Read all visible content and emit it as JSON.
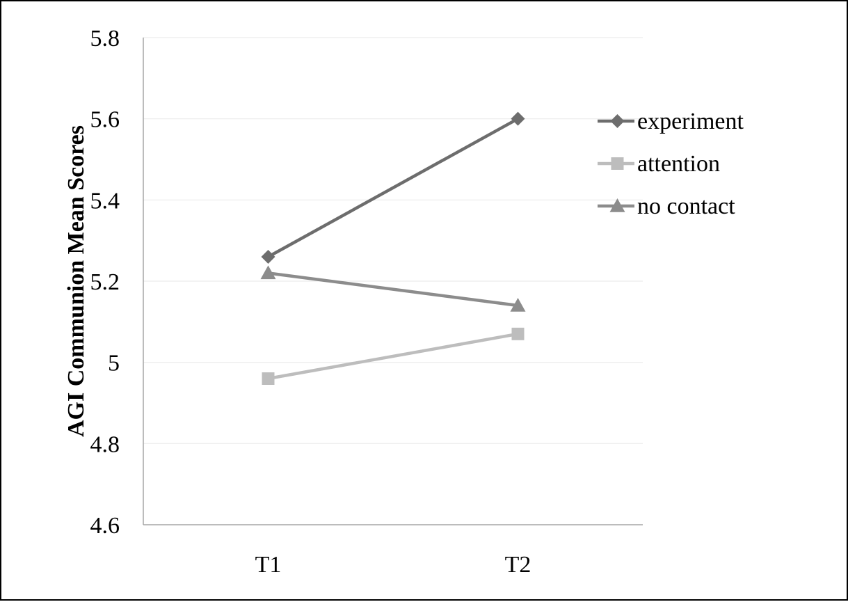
{
  "chart_data": {
    "type": "line",
    "title": "",
    "xlabel": "",
    "ylabel": "AGI Communion Mean Scores",
    "categories": [
      "T1",
      "T2"
    ],
    "ylim": [
      4.6,
      5.8
    ],
    "yticks": [
      "4.6",
      "4.8",
      "5",
      "5.2",
      "5.4",
      "5.6",
      "5.8"
    ],
    "grid": true,
    "legend_position": "right",
    "series": [
      {
        "name": "experiment",
        "values": [
          5.26,
          5.6
        ],
        "color": "#6d6d6d",
        "marker": "diamond"
      },
      {
        "name": "attention",
        "values": [
          4.96,
          5.07
        ],
        "color": "#bdbdbd",
        "marker": "square"
      },
      {
        "name": "no contact",
        "values": [
          5.22,
          5.14
        ],
        "color": "#8c8c8c",
        "marker": "triangle"
      }
    ]
  }
}
